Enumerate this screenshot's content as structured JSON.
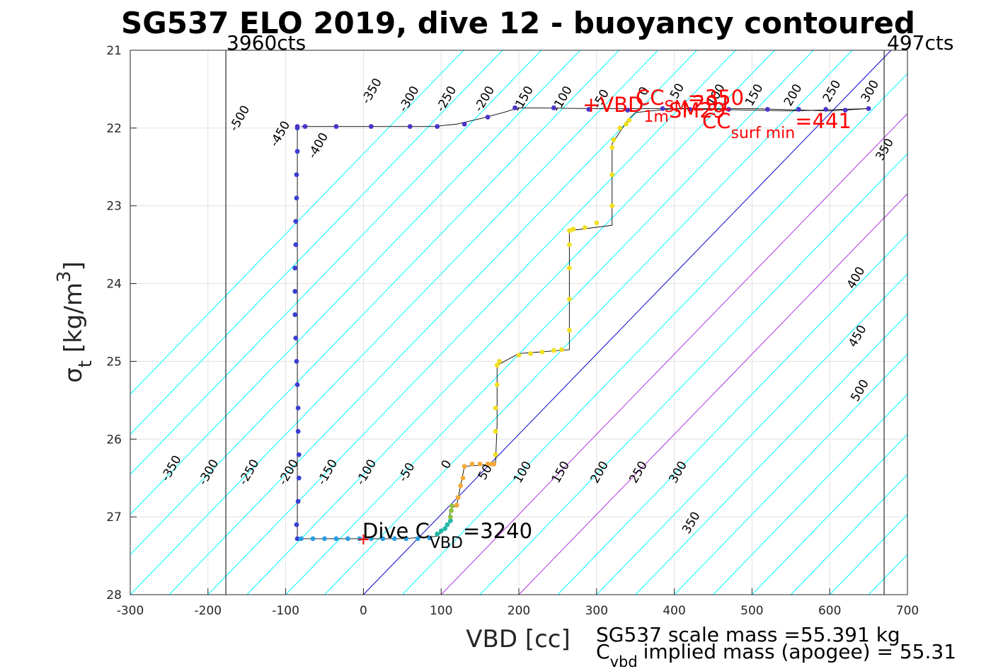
{
  "chart_data": {
    "type": "scatter",
    "title": "SG537 ELO 2019, dive 12 - buoyancy contoured",
    "xlabel": "VBD [cc]",
    "ylabel": "σ t [kg/m 3]",
    "ylabel_parts": {
      "sym": "σ",
      "sub": "t",
      "unit_open": " [kg/m",
      "unit_sup": "3",
      "unit_close": "]"
    },
    "xlim": [
      -300,
      700
    ],
    "ylim": [
      21,
      28
    ],
    "y_reversed": true,
    "xticks": [
      -300,
      -200,
      -100,
      0,
      100,
      200,
      300,
      400,
      500,
      600,
      700
    ],
    "yticks": [
      21,
      22,
      23,
      24,
      25,
      26,
      27,
      28
    ],
    "grid": true,
    "buoyancy_contours": {
      "slope_vbd_per_sigma": 97,
      "color": "#00ffff",
      "purple_color": "#b030e0",
      "blue_color": "#0000cc",
      "purple_offsets": [
        100,
        200
      ],
      "blue_offset": 0,
      "offsets": [
        -550,
        -500,
        -450,
        -400,
        -350,
        -300,
        -250,
        -200,
        -150,
        -100,
        -50,
        0,
        50,
        100,
        150,
        200,
        250,
        300,
        350,
        400,
        450,
        500,
        550,
        600,
        650,
        700,
        750,
        800,
        850
      ],
      "labels_top": [
        {
          "text": "-500",
          "x": -155,
          "y": 21.9
        },
        {
          "text": "-450",
          "x": -103,
          "y": 22.1
        },
        {
          "text": "-400",
          "x": -54,
          "y": 22.25
        },
        {
          "text": "-350",
          "x": 15,
          "y": 21.55
        },
        {
          "text": "-300",
          "x": 63,
          "y": 21.65
        },
        {
          "text": "-250",
          "x": 111,
          "y": 21.65
        },
        {
          "text": "-200",
          "x": 160,
          "y": 21.65
        },
        {
          "text": "-150",
          "x": 210,
          "y": 21.65
        },
        {
          "text": "-100",
          "x": 260,
          "y": 21.65
        },
        {
          "text": "-50",
          "x": 310,
          "y": 21.65
        },
        {
          "text": "0",
          "x": 365,
          "y": 21.55
        },
        {
          "text": "50",
          "x": 408,
          "y": 21.55
        },
        {
          "text": "100",
          "x": 458,
          "y": 21.6
        },
        {
          "text": "150",
          "x": 507,
          "y": 21.6
        },
        {
          "text": "200",
          "x": 557,
          "y": 21.6
        },
        {
          "text": "250",
          "x": 607,
          "y": 21.55
        },
        {
          "text": "300",
          "x": 656,
          "y": 21.55
        },
        {
          "text": "350",
          "x": 675,
          "y": 22.3
        },
        {
          "text": "400",
          "x": 638,
          "y": 23.95
        },
        {
          "text": "450",
          "x": 640,
          "y": 24.7
        },
        {
          "text": "500",
          "x": 643,
          "y": 25.4
        }
      ],
      "labels_bottom": [
        {
          "text": "-350",
          "x": -243,
          "y": 26.4
        },
        {
          "text": "-300",
          "x": -195,
          "y": 26.45
        },
        {
          "text": "-250",
          "x": -143,
          "y": 26.45
        },
        {
          "text": "-200",
          "x": -92,
          "y": 26.45
        },
        {
          "text": "-150",
          "x": -42,
          "y": 26.45
        },
        {
          "text": "-100",
          "x": 8,
          "y": 26.45
        },
        {
          "text": "-50",
          "x": 60,
          "y": 26.45
        },
        {
          "text": "0",
          "x": 111,
          "y": 26.35
        },
        {
          "text": "50",
          "x": 161,
          "y": 26.45
        },
        {
          "text": "100",
          "x": 209,
          "y": 26.45
        },
        {
          "text": "150",
          "x": 258,
          "y": 26.45
        },
        {
          "text": "200",
          "x": 308,
          "y": 26.45
        },
        {
          "text": "250",
          "x": 358,
          "y": 26.45
        },
        {
          "text": "300",
          "x": 409,
          "y": 26.45
        },
        {
          "text": "350",
          "x": 426,
          "y": 27.1
        }
      ]
    },
    "vertical_limits": [
      {
        "x": -177,
        "label": "3960cts"
      },
      {
        "x": 670,
        "label": "497cts"
      }
    ],
    "series": [
      {
        "name": "profile_line",
        "points": [
          [
            -85,
            21.98
          ],
          [
            -85,
            27.28
          ],
          [
            -20,
            27.28
          ],
          [
            50,
            27.28
          ],
          [
            95,
            27.25
          ],
          [
            110,
            27.1
          ],
          [
            112,
            26.9
          ],
          [
            120,
            26.85
          ],
          [
            125,
            26.6
          ],
          [
            130,
            26.35
          ],
          [
            170,
            26.32
          ],
          [
            172,
            25.8
          ],
          [
            172,
            25.05
          ],
          [
            200,
            24.9
          ],
          [
            265,
            24.85
          ],
          [
            265,
            23.32
          ],
          [
            320,
            23.25
          ],
          [
            320,
            22.2
          ],
          [
            330,
            22.05
          ],
          [
            340,
            21.9
          ],
          [
            350,
            21.8
          ],
          [
            400,
            21.75
          ],
          [
            450,
            21.75
          ],
          [
            500,
            21.75
          ],
          [
            600,
            21.78
          ],
          [
            650,
            21.75
          ],
          [
            550,
            21.78
          ],
          [
            400,
            21.75
          ],
          [
            300,
            21.75
          ],
          [
            200,
            21.74
          ],
          [
            180,
            21.8
          ],
          [
            150,
            21.88
          ],
          [
            120,
            21.95
          ],
          [
            90,
            21.98
          ],
          [
            0,
            21.98
          ],
          [
            -80,
            21.98
          ]
        ]
      },
      {
        "name": "dive_descent_bottom",
        "color": "#3a3fd0",
        "x": [
          -85,
          -85,
          -86,
          -86,
          -87,
          -87,
          -88,
          -88,
          -88,
          -87,
          -86,
          -85,
          -84,
          -84,
          -83,
          -83,
          -84,
          -86,
          -85
        ],
        "y": [
          22.0,
          22.3,
          22.6,
          22.9,
          23.2,
          23.5,
          23.8,
          24.1,
          24.4,
          24.7,
          25.0,
          25.3,
          25.6,
          25.9,
          26.2,
          26.5,
          26.8,
          27.1,
          27.28
        ]
      },
      {
        "name": "bottom_leg",
        "color": "#2a9de0",
        "x": [
          -80,
          -65,
          -50,
          -35,
          -20,
          -5,
          10,
          25,
          40,
          55,
          70,
          85
        ],
        "y": [
          27.28,
          27.28,
          27.28,
          27.28,
          27.28,
          27.28,
          27.28,
          27.28,
          27.28,
          27.28,
          27.28,
          27.27
        ]
      },
      {
        "name": "climb_lower",
        "color": "#20b8a8",
        "x": [
          95,
          100,
          105,
          108,
          112
        ],
        "y": [
          27.22,
          27.18,
          27.15,
          27.1,
          27.05
        ]
      },
      {
        "name": "climb_mid",
        "color": "#90c040",
        "x": [
          112,
          113,
          114
        ],
        "y": [
          27.0,
          26.92,
          26.86
        ]
      },
      {
        "name": "climb_orange",
        "color": "#f3a93a",
        "x": [
          120,
          122,
          125,
          128,
          130,
          140,
          150,
          160,
          165,
          168
        ],
        "y": [
          26.85,
          26.75,
          26.6,
          26.5,
          26.35,
          26.32,
          26.32,
          26.32,
          26.32,
          26.32
        ]
      },
      {
        "name": "climb_yellow",
        "color": "#f0e020",
        "x": [
          170,
          170,
          170,
          172,
          172,
          175,
          200,
          215,
          230,
          245,
          255,
          265,
          265,
          265,
          265,
          265,
          270,
          285,
          300,
          320,
          320,
          320,
          322,
          330,
          338,
          342
        ],
        "y": [
          26.2,
          25.9,
          25.6,
          25.3,
          25.05,
          25.0,
          24.92,
          24.9,
          24.88,
          24.86,
          24.85,
          24.6,
          24.2,
          23.8,
          23.5,
          23.32,
          23.3,
          23.28,
          23.22,
          23.0,
          22.6,
          22.25,
          22.15,
          22.0,
          21.95,
          21.9
        ]
      },
      {
        "name": "surface_tail",
        "color": "#4a35c8",
        "x": [
          -85,
          -75,
          -35,
          10,
          60,
          95,
          130,
          160,
          195,
          245,
          290,
          340,
          385,
          420,
          470,
          520,
          560,
          595,
          620,
          650
        ],
        "y": [
          21.98,
          21.98,
          21.98,
          21.98,
          21.98,
          21.98,
          21.95,
          21.86,
          21.74,
          21.74,
          21.76,
          21.77,
          21.75,
          21.76,
          21.76,
          21.76,
          21.76,
          21.76,
          21.77,
          21.75
        ]
      }
    ],
    "annotations": {
      "dive_cvbd": "Dive C VBD =3240",
      "dive_cvbd_parts": {
        "main": "Dive C",
        "sub": "VBD",
        "rest": "=3240"
      },
      "dive_marker": {
        "x": 0,
        "y": 27.29
      },
      "cc_1m": "+VBD 1m SM29",
      "cc_1m_parts": {
        "plus": "+",
        "main": "VBD",
        "sub": "1m",
        "rest": "SM29"
      },
      "cc_sm": "CC SM =350",
      "cc_sm_parts": {
        "main": "CC",
        "sub": "SM",
        "rest": "=350"
      },
      "cc_sm_extra": "291",
      "cc_surf_min": "CC surf min =441",
      "cc_surf_min_parts": {
        "main": "CC",
        "sub": "surf min",
        "rest": "=441"
      },
      "scale_mass": "SG537 scale mass =55.391 kg",
      "cvbd_mass": "C vbd implied mass (apogee) = 55.31",
      "cvbd_mass_parts": {
        "main": "C",
        "sub": "vbd",
        "rest": "implied mass (apogee) = 55.31"
      }
    }
  }
}
